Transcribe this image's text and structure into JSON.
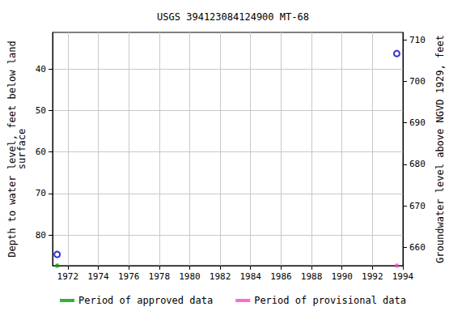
{
  "chart_data": {
    "type": "scatter",
    "title": "USGS 394123084124900 MT-68",
    "ylabel": "Depth to water level, feet below land\nsurface",
    "y2label": "Groundwater level above NGVD 1929, feet",
    "x": [
      1971.3,
      1993.6
    ],
    "values": [
      84.7,
      36.3
    ],
    "color": "#0000cc",
    "marker": "circle",
    "periods": [
      {
        "name": "Period of approved data",
        "color": "#00a000",
        "x": [
          1971.3
        ]
      },
      {
        "name": "Period of provisional data",
        "color": "#ff44cc",
        "x": [
          1993.6
        ]
      }
    ],
    "xlim": [
      1971.0,
      1994.0
    ],
    "xticks": [
      1972,
      1974,
      1976,
      1978,
      1980,
      1982,
      1984,
      1986,
      1988,
      1990,
      1992,
      1994
    ],
    "ylim": [
      31.2,
      87.4
    ],
    "yticks": [
      40,
      50,
      60,
      70,
      80
    ],
    "y2lim": [
      655.6,
      711.8
    ],
    "y2ticks": [
      660,
      670,
      680,
      690,
      700,
      710
    ],
    "grid": true,
    "legend": "bottom"
  }
}
